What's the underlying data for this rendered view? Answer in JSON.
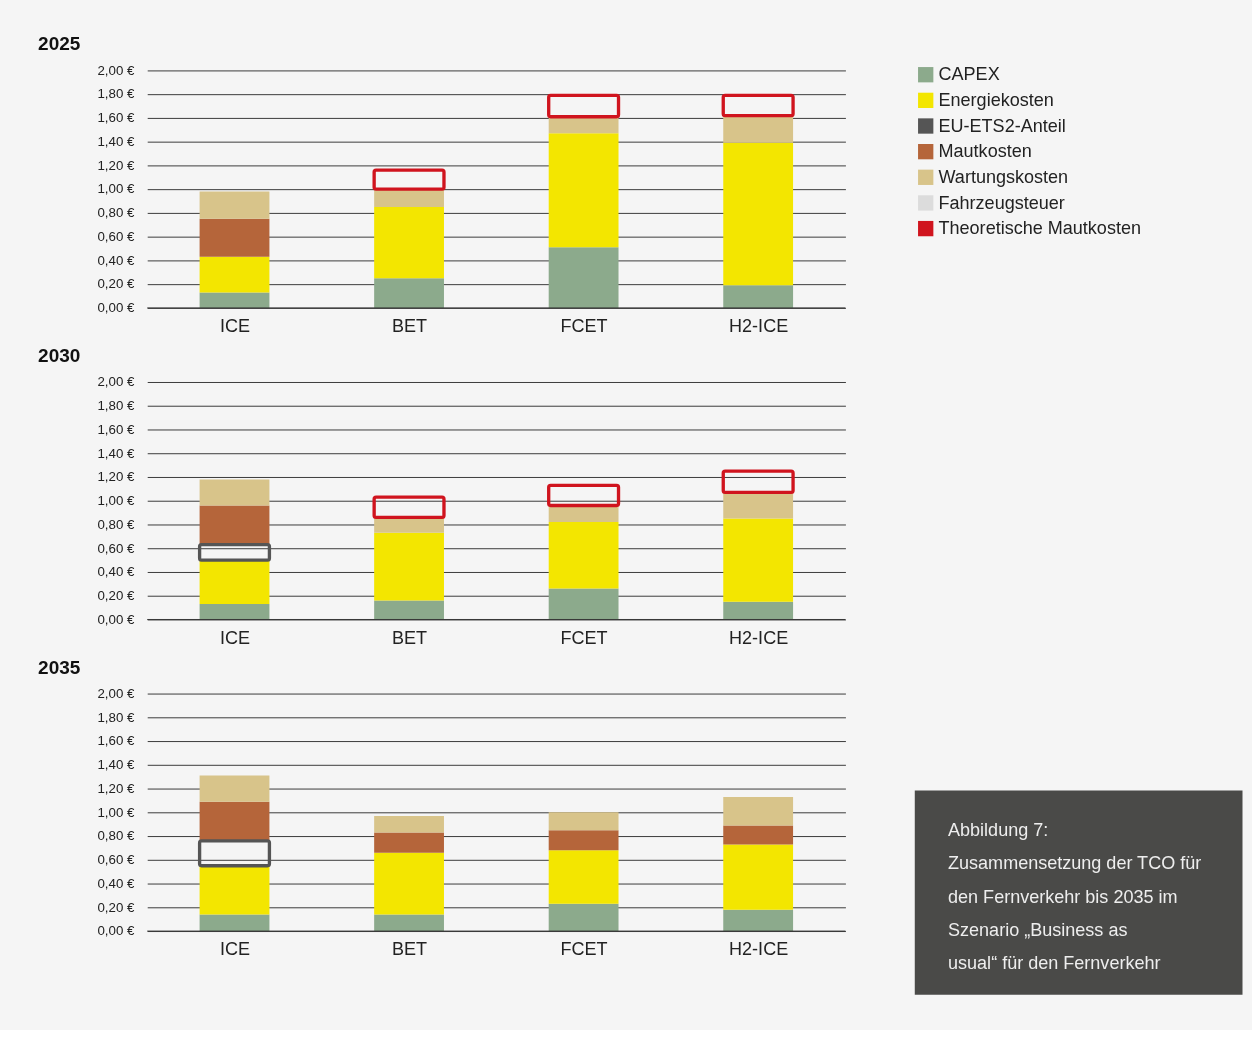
{
  "chart_data": [
    {
      "type": "bar",
      "title": "2025",
      "stacked": true,
      "categories": [
        "ICE",
        "BET",
        "FCET",
        "H2-ICE"
      ],
      "ylim": [
        0,
        2
      ],
      "yticks": [
        {
          "value": 0,
          "label": "0,00 €"
        },
        {
          "value": 0.2,
          "label": "0,20 €"
        },
        {
          "value": 0.4,
          "label": "0,40 €"
        },
        {
          "value": 0.6,
          "label": "0,60 €"
        },
        {
          "value": 0.8,
          "label": "0,80 €"
        },
        {
          "value": 1,
          "label": "1,00 €"
        },
        {
          "value": 1.2,
          "label": "1,20 €"
        },
        {
          "value": 1.4,
          "label": "1,40 €"
        },
        {
          "value": 1.6,
          "label": "1,60 €"
        },
        {
          "value": 1.8,
          "label": "1,80 €"
        },
        {
          "value": 2,
          "label": "2,00 €"
        }
      ],
      "grid": "y",
      "legend": "top right",
      "series": [
        {
          "name": "CAPEX",
          "color": "#8caa8c",
          "values": [
            0.13,
            0.25,
            0.51,
            0.19
          ]
        },
        {
          "name": "Energiekosten",
          "color": "#f3e600",
          "values": [
            0.3,
            0.6,
            0.96,
            1.2
          ]
        },
        {
          "name": "EU-ETS2-Anteil",
          "color": "#555555",
          "line_style": "solid",
          "values": [
            null,
            null,
            null,
            null
          ]
        },
        {
          "name": "Mautkosten",
          "color": "#b5653a",
          "values": [
            0.32,
            null,
            null,
            null
          ]
        },
        {
          "name": "Wartungskosten",
          "color": "#d8c48a",
          "values": [
            0.23,
            0.15,
            0.14,
            0.23
          ]
        },
        {
          "name": "Fahrzeugsteuer",
          "color": "#dcdcdc",
          "values": [
            null,
            null,
            null,
            null
          ]
        },
        {
          "name": "Theoretische Mautkosten",
          "color": "#d0141e",
          "line_style": "solid",
          "values": [
            null,
            0.16,
            0.18,
            0.17
          ]
        }
      ]
    },
    {
      "type": "bar",
      "title": "2030",
      "stacked": true,
      "categories": [
        "ICE",
        "BET",
        "FCET",
        "H2-ICE"
      ],
      "ylim": [
        0,
        2
      ],
      "yticks": [
        {
          "value": 0,
          "label": "0,00 €"
        },
        {
          "value": 0.2,
          "label": "0,20 €"
        },
        {
          "value": 0.4,
          "label": "0,40 €"
        },
        {
          "value": 0.6,
          "label": "0,60 €"
        },
        {
          "value": 0.8,
          "label": "0,80 €"
        },
        {
          "value": 1,
          "label": "1,00 €"
        },
        {
          "value": 1.2,
          "label": "1,20 €"
        },
        {
          "value": 1.4,
          "label": "1,40 €"
        },
        {
          "value": 1.6,
          "label": "1,60 €"
        },
        {
          "value": 1.8,
          "label": "1,80 €"
        },
        {
          "value": 2,
          "label": "2,00 €"
        }
      ],
      "grid": "y",
      "series": [
        {
          "color": "#8caa8c",
          "values": [
            0.13,
            0.16,
            0.26,
            0.15
          ]
        },
        {
          "color": "#f3e600",
          "values": [
            0.37,
            0.57,
            0.56,
            0.7
          ]
        },
        {
          "color": "#555555",
          "line_style": "solid",
          "values": [
            0.13,
            null,
            null,
            null
          ]
        },
        {
          "color": "#b5653a",
          "values": [
            0.33,
            null,
            null,
            null
          ]
        },
        {
          "color": "#d8c48a",
          "values": [
            0.22,
            0.13,
            0.14,
            0.22
          ]
        },
        {
          "color": "#d0141e",
          "line_style": "solid",
          "values": [
            null,
            0.17,
            0.17,
            0.18
          ]
        }
      ]
    },
    {
      "type": "bar",
      "title": "2035",
      "stacked": true,
      "categories": [
        "ICE",
        "BET",
        "FCET",
        "H2-ICE"
      ],
      "ylim": [
        0,
        2
      ],
      "yticks": [
        {
          "value": 0,
          "label": "0,00 €"
        },
        {
          "value": 0.2,
          "label": "0,20 €"
        },
        {
          "value": 0.4,
          "label": "0,40 €"
        },
        {
          "value": 0.6,
          "label": "0,60 €"
        },
        {
          "value": 0.8,
          "label": "0,80 €"
        },
        {
          "value": 1,
          "label": "1,00 €"
        },
        {
          "value": 1.2,
          "label": "1,20 €"
        },
        {
          "value": 1.4,
          "label": "1,40 €"
        },
        {
          "value": 1.6,
          "label": "1,60 €"
        },
        {
          "value": 1.8,
          "label": "1,80 €"
        },
        {
          "value": 2,
          "label": "2,00 €"
        }
      ],
      "grid": "y",
      "annotations": [
        "Abbildung 7: Zusammensetzung der TCO für den Fernverkehr bis 2035 im Szenario „Business as usual“ für den Fernverkehr"
      ],
      "series": [
        {
          "color": "#8caa8c",
          "values": [
            0.14,
            0.14,
            0.23,
            0.18
          ]
        },
        {
          "color": "#f3e600",
          "values": [
            0.41,
            0.52,
            0.45,
            0.55
          ]
        },
        {
          "color": "#555555",
          "line_style": "solid",
          "values": [
            0.21,
            null,
            null,
            null
          ]
        },
        {
          "color": "#b5653a",
          "values": [
            0.33,
            0.17,
            0.17,
            0.16
          ]
        },
        {
          "color": "#d8c48a",
          "values": [
            0.22,
            0.14,
            0.15,
            0.24
          ]
        }
      ]
    }
  ]
}
